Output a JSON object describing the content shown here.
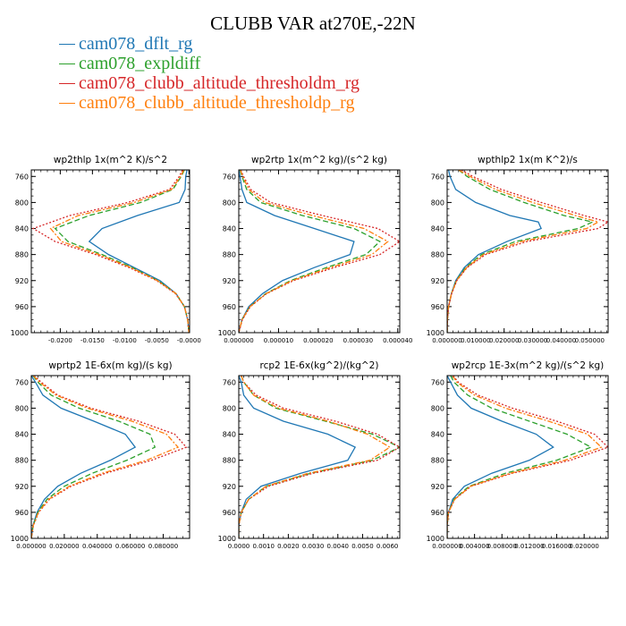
{
  "figure": {
    "title": "CLUBB VAR at270E,-22N",
    "legend": [
      {
        "label": "cam078_dflt_rg",
        "color": "#1f77b4"
      },
      {
        "label": "cam078_expldiff",
        "color": "#2ca02c"
      },
      {
        "label": "cam078_clubb_altitude_thresholdm_rg",
        "color": "#d62728"
      },
      {
        "label": "cam078_clubb_altitude_thresholdp_rg",
        "color": "#ff7f0e"
      }
    ]
  },
  "chart_data": [
    {
      "type": "line",
      "title": "wp2thlp   1x(m^2 K)/s^2",
      "xlim": [
        -0.0245,
        0.0001
      ],
      "ylim": [
        1000,
        750
      ],
      "xticks": [
        -0.02,
        -0.015,
        -0.01,
        -0.005,
        0.0
      ],
      "xtick_labels": [
        "-0.0200",
        "-0.0150",
        "-0.0100",
        "-0.0050",
        "-0.0000"
      ],
      "yticks": [
        760,
        800,
        840,
        880,
        920,
        960,
        1000
      ],
      "y": [
        750,
        760,
        780,
        800,
        820,
        840,
        860,
        880,
        900,
        920,
        940,
        960,
        980,
        1000
      ],
      "series": [
        {
          "name": "cam078_dflt_rg",
          "values": [
            -0.0003,
            -0.0005,
            -0.0006,
            -0.0015,
            -0.008,
            -0.0135,
            -0.0155,
            -0.0125,
            -0.0085,
            -0.0045,
            -0.002,
            -0.0007,
            -0.0002,
            0.0
          ]
        },
        {
          "name": "cam078_expldiff",
          "values": [
            -0.0007,
            -0.0012,
            -0.0025,
            -0.0075,
            -0.0155,
            -0.0208,
            -0.0188,
            -0.0135,
            -0.0088,
            -0.0048,
            -0.002,
            -0.0007,
            -0.0002,
            0.0
          ]
        },
        {
          "name": "cam078_clubb_altitude_thresholdm_rg",
          "values": [
            -0.001,
            -0.0015,
            -0.003,
            -0.0095,
            -0.0185,
            -0.0242,
            -0.0208,
            -0.0145,
            -0.0093,
            -0.005,
            -0.0021,
            -0.0007,
            -0.0002,
            0.0
          ]
        },
        {
          "name": "cam078_clubb_altitude_thresholdp_rg",
          "values": [
            -0.0008,
            -0.0013,
            -0.0027,
            -0.0085,
            -0.0172,
            -0.0215,
            -0.0198,
            -0.014,
            -0.009,
            -0.0049,
            -0.002,
            -0.0007,
            -0.0002,
            0.0
          ]
        }
      ]
    },
    {
      "type": "line",
      "title": "wp2rtp   1x(m^2 kg)/(s^2 kg)",
      "xlim": [
        0.0,
        4.05e-05
      ],
      "ylim": [
        1000,
        750
      ],
      "xticks": [
        0.0,
        1e-05,
        2e-05,
        3e-05,
        4e-05
      ],
      "xtick_labels": [
        "0.000000",
        "0.000010",
        "0.000020",
        "0.000030",
        "0.000040"
      ],
      "yticks": [
        760,
        800,
        840,
        880,
        920,
        960,
        1000
      ],
      "y": [
        750,
        760,
        780,
        800,
        820,
        840,
        860,
        880,
        900,
        920,
        940,
        960,
        980,
        1000
      ],
      "series": [
        {
          "name": "cam078_dflt_rg",
          "values": [
            0.0,
            3e-07,
            8e-07,
            2e-06,
            9e-06,
            1.9e-05,
            2.9e-05,
            2.8e-05,
            1.9e-05,
            1.1e-05,
            6e-06,
            2.5e-06,
            8e-07,
            0.0
          ]
        },
        {
          "name": "cam078_expldiff",
          "values": [
            3e-07,
            8e-07,
            2e-06,
            5.5e-06,
            1.6e-05,
            2.9e-05,
            3.55e-05,
            3.2e-05,
            2.2e-05,
            1.3e-05,
            6.8e-06,
            2.8e-06,
            8e-07,
            0.0
          ]
        },
        {
          "name": "cam078_clubb_altitude_thresholdm_rg",
          "values": [
            5e-07,
            1.2e-06,
            3e-06,
            8e-06,
            2.1e-05,
            3.5e-05,
            4.05e-05,
            3.55e-05,
            2.4e-05,
            1.38e-05,
            7e-06,
            2.9e-06,
            9e-07,
            0.0
          ]
        },
        {
          "name": "cam078_clubb_altitude_thresholdp_rg",
          "values": [
            4e-07,
            1e-06,
            2.5e-06,
            6.5e-06,
            1.85e-05,
            3.15e-05,
            3.75e-05,
            3.35e-05,
            2.3e-05,
            1.34e-05,
            6.9e-06,
            2.8e-06,
            8e-07,
            0.0
          ]
        }
      ]
    },
    {
      "type": "line",
      "title": "wpthlp2   1x(m K^2)/s",
      "xlim": [
        0.0,
        0.0565
      ],
      "ylim": [
        1000,
        750
      ],
      "xticks": [
        0.0,
        0.01,
        0.02,
        0.03,
        0.04,
        0.05
      ],
      "xtick_labels": [
        "0.000000",
        "0.010000",
        "0.020000",
        "0.030000",
        "0.040000",
        "0.050000"
      ],
      "yticks": [
        760,
        800,
        840,
        880,
        920,
        960,
        1000
      ],
      "y": [
        750,
        760,
        780,
        800,
        820,
        830,
        840,
        860,
        880,
        900,
        920,
        940,
        960,
        980,
        1000
      ],
      "series": [
        {
          "name": "cam078_dflt_rg",
          "values": [
            0.0005,
            0.001,
            0.003,
            0.01,
            0.022,
            0.032,
            0.033,
            0.021,
            0.011,
            0.006,
            0.003,
            0.0015,
            0.0005,
            0.0001,
            0.0
          ]
        },
        {
          "name": "cam078_expldiff",
          "values": [
            0.004,
            0.007,
            0.015,
            0.027,
            0.041,
            0.051,
            0.046,
            0.024,
            0.012,
            0.0065,
            0.0032,
            0.0015,
            0.0005,
            0.0001,
            0.0
          ]
        },
        {
          "name": "cam078_clubb_altitude_thresholdm_rg",
          "values": [
            0.005,
            0.009,
            0.019,
            0.033,
            0.048,
            0.0565,
            0.053,
            0.028,
            0.0135,
            0.007,
            0.0034,
            0.0016,
            0.0005,
            0.0001,
            0.0
          ]
        },
        {
          "name": "cam078_clubb_altitude_thresholdp_rg",
          "values": [
            0.004,
            0.008,
            0.017,
            0.03,
            0.045,
            0.053,
            0.049,
            0.026,
            0.0128,
            0.0068,
            0.0033,
            0.0015,
            0.0005,
            0.0001,
            0.0
          ]
        }
      ]
    },
    {
      "type": "line",
      "title": "wprtp2   1E-6x(m kg)/(s kg)",
      "xlim": [
        0.0,
        0.096
      ],
      "ylim": [
        1000,
        750
      ],
      "xticks": [
        0.0,
        0.02,
        0.04,
        0.06,
        0.08
      ],
      "xtick_labels": [
        "0.000000",
        "0.020000",
        "0.040000",
        "0.060000",
        "0.080000"
      ],
      "yticks": [
        760,
        800,
        840,
        880,
        920,
        960,
        1000
      ],
      "y": [
        750,
        760,
        780,
        800,
        820,
        840,
        860,
        880,
        900,
        920,
        940,
        960,
        980,
        1000
      ],
      "series": [
        {
          "name": "cam078_dflt_rg",
          "values": [
            0.0,
            0.0025,
            0.007,
            0.018,
            0.038,
            0.057,
            0.063,
            0.048,
            0.03,
            0.016,
            0.008,
            0.0035,
            0.001,
            0.0
          ]
        },
        {
          "name": "cam078_expldiff",
          "values": [
            0.001,
            0.004,
            0.012,
            0.029,
            0.053,
            0.072,
            0.075,
            0.058,
            0.037,
            0.02,
            0.0095,
            0.004,
            0.0012,
            0.0
          ]
        },
        {
          "name": "cam078_clubb_altitude_thresholdm_rg",
          "values": [
            0.0015,
            0.006,
            0.016,
            0.036,
            0.065,
            0.087,
            0.094,
            0.073,
            0.045,
            0.024,
            0.011,
            0.0045,
            0.0013,
            0.0
          ]
        },
        {
          "name": "cam078_clubb_altitude_thresholdp_rg",
          "values": [
            0.0012,
            0.005,
            0.015,
            0.034,
            0.061,
            0.082,
            0.089,
            0.07,
            0.043,
            0.023,
            0.0105,
            0.0043,
            0.0012,
            0.0
          ]
        }
      ]
    },
    {
      "type": "line",
      "title": "rcp2   1E-6x(kg^2)/(kg^2)",
      "xlim": [
        0.0,
        0.0065
      ],
      "ylim": [
        1000,
        750
      ],
      "xticks": [
        0.0,
        0.001,
        0.002,
        0.003,
        0.004,
        0.005,
        0.006
      ],
      "xtick_labels": [
        "0.0000",
        "0.0010",
        "0.0020",
        "0.0030",
        "0.0040",
        "0.0050",
        "0.0060"
      ],
      "yticks": [
        760,
        800,
        840,
        880,
        920,
        960,
        1000
      ],
      "y": [
        750,
        760,
        780,
        800,
        820,
        840,
        860,
        880,
        900,
        920,
        940,
        960,
        980,
        1000
      ],
      "series": [
        {
          "name": "cam078_dflt_rg",
          "values": [
            0.0,
            0.0001,
            0.0002,
            0.0006,
            0.0018,
            0.0036,
            0.0047,
            0.0044,
            0.0025,
            0.0009,
            0.0003,
            0.0001,
            0.0,
            0.0
          ]
        },
        {
          "name": "cam078_expldiff",
          "values": [
            0.0001,
            0.0002,
            0.0006,
            0.0015,
            0.0035,
            0.0054,
            0.0065,
            0.0054,
            0.0029,
            0.0011,
            0.0004,
            0.0001,
            0.0,
            0.0
          ]
        },
        {
          "name": "cam078_clubb_altitude_thresholdm_rg",
          "values": [
            0.0001,
            0.0002,
            0.0007,
            0.0018,
            0.0039,
            0.0056,
            0.0065,
            0.0056,
            0.003,
            0.0012,
            0.0004,
            0.0001,
            0.0,
            0.0
          ]
        },
        {
          "name": "cam078_clubb_altitude_thresholdp_rg",
          "values": [
            0.0001,
            0.0002,
            0.0006,
            0.0016,
            0.0036,
            0.0052,
            0.0061,
            0.0053,
            0.0028,
            0.0011,
            0.0004,
            0.0001,
            0.0,
            0.0
          ]
        }
      ]
    },
    {
      "type": "line",
      "title": "wp2rcp   1E-3x(m^2 kg)/(s^2 kg)",
      "xlim": [
        0.0,
        0.0235
      ],
      "ylim": [
        1000,
        750
      ],
      "xticks": [
        0.0,
        0.004,
        0.008,
        0.012,
        0.016,
        0.02
      ],
      "xtick_labels": [
        "0.000000",
        "0.004000",
        "0.008000",
        "0.012000",
        "0.016000",
        "0.020000"
      ],
      "yticks": [
        760,
        800,
        840,
        880,
        920,
        960,
        1000
      ],
      "y": [
        750,
        760,
        780,
        800,
        820,
        840,
        860,
        880,
        900,
        920,
        940,
        960,
        980,
        1000
      ],
      "series": [
        {
          "name": "cam078_dflt_rg",
          "values": [
            0.0,
            0.0005,
            0.0015,
            0.0035,
            0.008,
            0.013,
            0.0155,
            0.012,
            0.0065,
            0.0025,
            0.0008,
            0.0002,
            0.0,
            0.0
          ]
        },
        {
          "name": "cam078_expldiff",
          "values": [
            0.0005,
            0.001,
            0.003,
            0.0065,
            0.012,
            0.0175,
            0.021,
            0.016,
            0.0085,
            0.0032,
            0.001,
            0.0002,
            0.0,
            0.0
          ]
        },
        {
          "name": "cam078_clubb_altitude_thresholdm_rg",
          "values": [
            0.0009,
            0.0016,
            0.0045,
            0.0095,
            0.016,
            0.0215,
            0.0235,
            0.018,
            0.0095,
            0.0035,
            0.0011,
            0.0002,
            0.0,
            0.0
          ]
        },
        {
          "name": "cam078_clubb_altitude_thresholdp_rg",
          "values": [
            0.0008,
            0.0014,
            0.004,
            0.0085,
            0.0148,
            0.0205,
            0.0225,
            0.0172,
            0.0092,
            0.0034,
            0.0011,
            0.0002,
            0.0,
            0.0
          ]
        }
      ]
    }
  ]
}
